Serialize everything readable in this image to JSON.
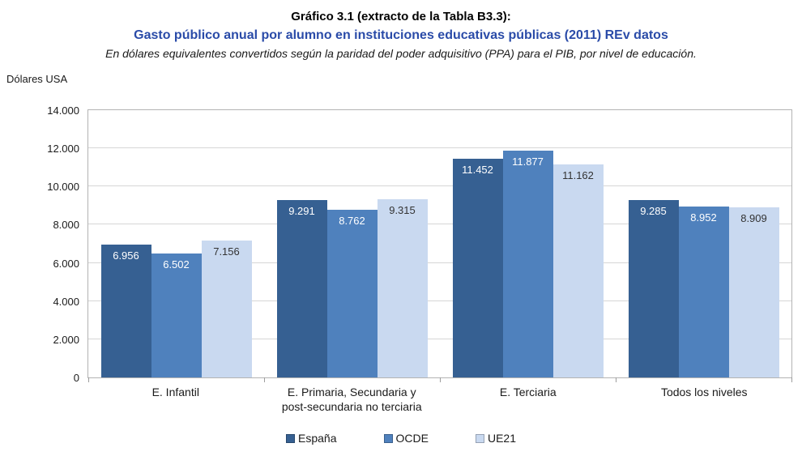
{
  "header": {
    "title": "Gráfico 3.1 (extracto de la Tabla B3.3):",
    "subtitle": "Gasto público anual por alumno en instituciones educativas públicas (2011) REv datos",
    "subtitle_color": "#2a4ba8",
    "note": "En dólares equivalentes convertidos según la paridad del poder adquisitivo (PPA) para el PIB, por nivel de educación."
  },
  "chart_data": {
    "type": "bar",
    "title": "Gráfico 3.1 (extracto de la Tabla B3.3):",
    "subtitle": "Gasto público anual por alumno en instituciones educativas públicas (2011) REv datos",
    "ylabel": "Dólares USA",
    "ylim": [
      0,
      14000
    ],
    "ytick_step": 2000,
    "yticks": [
      "0",
      "2.000",
      "4.000",
      "6.000",
      "8.000",
      "10.000",
      "12.000",
      "14.000"
    ],
    "grid": true,
    "legend_position": "bottom",
    "categories": [
      "E. Infantil",
      "E. Primaria, Secundaria y\npost-secundaria no terciaria",
      "E. Terciaria",
      "Todos los niveles"
    ],
    "series": [
      {
        "name": "España",
        "color": "#366092",
        "label_color": "#ffffff",
        "values": [
          6956,
          9291,
          11452,
          9285
        ],
        "labels": [
          "6.956",
          "9.291",
          "11.452",
          "9.285"
        ]
      },
      {
        "name": "OCDE",
        "color": "#4f81bd",
        "label_color": "#ffffff",
        "values": [
          6502,
          8762,
          11877,
          8952
        ],
        "labels": [
          "6.502",
          "8.762",
          "11.877",
          "8.952"
        ]
      },
      {
        "name": "UE21",
        "color": "#c9d9f0",
        "label_color": "#333333",
        "values": [
          7156,
          9315,
          11162,
          8909
        ],
        "labels": [
          "7.156",
          "9.315",
          "11.162",
          "8.909"
        ]
      }
    ]
  }
}
